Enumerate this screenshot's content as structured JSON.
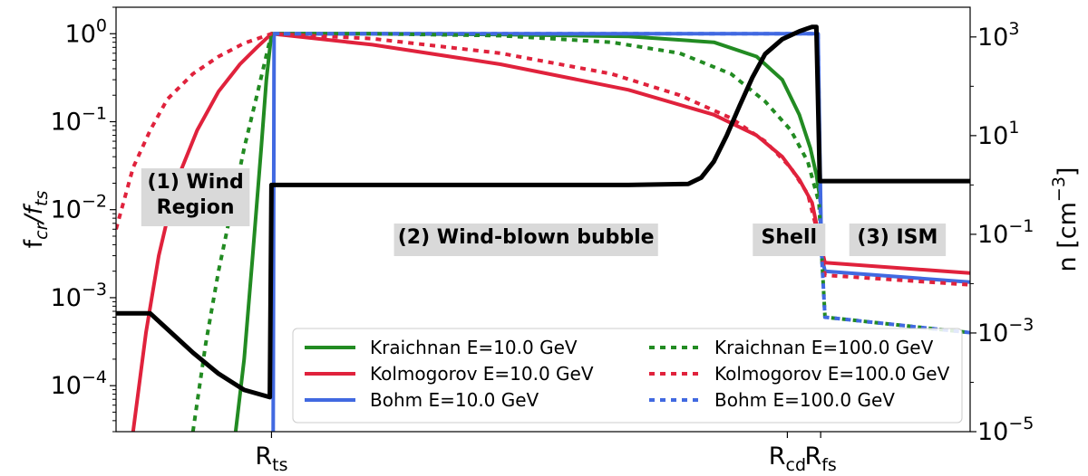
{
  "chart_data": {
    "type": "line",
    "ylabel_left": "f_cr/f_ts",
    "ylabel_right": "n [cm^-3]",
    "xlim": [
      0,
      100
    ],
    "ylim_left": [
      3e-05,
      2
    ],
    "ylim_right": [
      1e-05,
      4000
    ],
    "y_scale": "log",
    "x_ticks": [
      {
        "x": 18.2,
        "label": "R",
        "sub": "ts"
      },
      {
        "x": 78.6,
        "label": "R",
        "sub": "cd"
      },
      {
        "x": 82.5,
        "label": "R",
        "sub": "fs"
      }
    ],
    "y_ticks_left": [
      {
        "v": 1,
        "base": "10",
        "exp": "0"
      },
      {
        "v": 0.1,
        "base": "10",
        "exp": "−1"
      },
      {
        "v": 0.01,
        "base": "10",
        "exp": "−2"
      },
      {
        "v": 0.001,
        "base": "10",
        "exp": "−3"
      },
      {
        "v": 0.0001,
        "base": "10",
        "exp": "−4"
      }
    ],
    "y_ticks_right": [
      {
        "v": 1000,
        "base": "10",
        "exp": "3"
      },
      {
        "v": 10,
        "base": "10",
        "exp": "1"
      },
      {
        "v": 0.1,
        "base": "10",
        "exp": "−1"
      },
      {
        "v": 0.001,
        "base": "10",
        "exp": "−3"
      },
      {
        "v": 1e-05,
        "base": "10",
        "exp": "−5"
      }
    ],
    "regions": [
      {
        "lines": [
          "(1) Wind",
          "Region"
        ],
        "x": 9.3
      },
      {
        "lines": [
          "(2) Wind-blown bubble"
        ],
        "x": 48.0
      },
      {
        "lines": [
          "Shell"
        ],
        "x": 78.8
      },
      {
        "lines": [
          "(3) ISM"
        ],
        "x": 91.5
      }
    ],
    "series": [
      {
        "name": "Kraichnan E=10.0 GeV",
        "color": "#228b22",
        "style": "solid",
        "axis": "left",
        "points": [
          [
            14.0,
            3e-05
          ],
          [
            15.0,
            0.0002
          ],
          [
            16.0,
            0.003
          ],
          [
            17.0,
            0.05
          ],
          [
            17.6,
            0.3
          ],
          [
            18.2,
            1
          ],
          [
            30,
            1
          ],
          [
            45,
            0.98
          ],
          [
            60,
            0.93
          ],
          [
            70,
            0.8
          ],
          [
            75,
            0.55
          ],
          [
            78,
            0.3
          ],
          [
            80,
            0.12
          ],
          [
            81.3,
            0.05
          ],
          [
            82.0,
            0.025
          ],
          [
            82.5,
            0.012
          ]
        ]
      },
      {
        "name": "Kolmogorov E=10.0 GeV",
        "color": "#e0223c",
        "style": "solid",
        "axis": "left",
        "points": [
          [
            2.0,
            3e-05
          ],
          [
            3.5,
            0.0004
          ],
          [
            5.0,
            0.003
          ],
          [
            7.0,
            0.02
          ],
          [
            9.5,
            0.08
          ],
          [
            12.0,
            0.22
          ],
          [
            14.5,
            0.45
          ],
          [
            16.5,
            0.7
          ],
          [
            18.2,
            1
          ],
          [
            30,
            0.75
          ],
          [
            45,
            0.45
          ],
          [
            60,
            0.23
          ],
          [
            70,
            0.12
          ],
          [
            75,
            0.07
          ],
          [
            78,
            0.04
          ],
          [
            80,
            0.022
          ],
          [
            81.5,
            0.012
          ],
          [
            82.5,
            0.004
          ],
          [
            83,
            0.0025
          ],
          [
            100,
            0.0019
          ]
        ]
      },
      {
        "name": "Bohm E=10.0 GeV",
        "color": "#4169e1",
        "style": "solid",
        "axis": "left",
        "points": [
          [
            18.4,
            3e-05
          ],
          [
            18.5,
            1
          ],
          [
            82.2,
            1
          ],
          [
            82.4,
            0.05
          ],
          [
            82.6,
            0.003
          ],
          [
            83,
            0.002
          ],
          [
            100,
            0.0015
          ]
        ]
      },
      {
        "name": "Kraichnan E=100.0 GeV",
        "color": "#228b22",
        "style": "dotted",
        "axis": "left",
        "points": [
          [
            9.0,
            3e-05
          ],
          [
            10.5,
            0.0003
          ],
          [
            12.0,
            0.002
          ],
          [
            13.5,
            0.01
          ],
          [
            15.0,
            0.05
          ],
          [
            16.5,
            0.2
          ],
          [
            18.2,
            1
          ],
          [
            30,
            1
          ],
          [
            45,
            0.95
          ],
          [
            58,
            0.8
          ],
          [
            66,
            0.6
          ],
          [
            72,
            0.35
          ],
          [
            76,
            0.17
          ],
          [
            79,
            0.08
          ],
          [
            81,
            0.035
          ],
          [
            82.3,
            0.012
          ],
          [
            83,
            0.0006
          ],
          [
            100,
            0.0004
          ]
        ]
      },
      {
        "name": "Kolmogorov E=100.0 GeV",
        "color": "#e0223c",
        "style": "dotted",
        "axis": "left",
        "points": [
          [
            0,
            0.006
          ],
          [
            2,
            0.03
          ],
          [
            4,
            0.08
          ],
          [
            6,
            0.18
          ],
          [
            9,
            0.35
          ],
          [
            12,
            0.55
          ],
          [
            15,
            0.78
          ],
          [
            18.2,
            1
          ],
          [
            30,
            0.88
          ],
          [
            45,
            0.6
          ],
          [
            58,
            0.35
          ],
          [
            66,
            0.2
          ],
          [
            72,
            0.11
          ],
          [
            76,
            0.06
          ],
          [
            79,
            0.03
          ],
          [
            81,
            0.015
          ],
          [
            82.5,
            0.004
          ],
          [
            83,
            0.0018
          ],
          [
            100,
            0.0014
          ]
        ]
      },
      {
        "name": "Bohm E=100.0 GeV",
        "color": "#4169e1",
        "style": "dotted",
        "axis": "left",
        "points": [
          [
            18.5,
            1
          ],
          [
            82.2,
            1
          ],
          [
            82.5,
            0.005
          ],
          [
            83,
            0.0006
          ],
          [
            100,
            0.0004
          ]
        ]
      },
      {
        "name": "",
        "color": "#000000",
        "style": "solid",
        "axis": "right",
        "width": 5,
        "points": [
          [
            0,
            0.0025
          ],
          [
            4,
            0.0025
          ],
          [
            6,
            0.0012
          ],
          [
            9,
            0.0004
          ],
          [
            12,
            0.00015
          ],
          [
            15,
            7e-05
          ],
          [
            18.0,
            5e-05
          ],
          [
            18.2,
            1.0
          ],
          [
            60,
            1.0
          ],
          [
            67,
            1.05
          ],
          [
            68.5,
            1.4
          ],
          [
            70,
            3
          ],
          [
            71.5,
            10
          ],
          [
            73,
            40
          ],
          [
            74.5,
            150
          ],
          [
            76,
            450
          ],
          [
            78,
            900
          ],
          [
            80,
            1300
          ],
          [
            81.5,
            1600
          ],
          [
            82.0,
            1600
          ],
          [
            82.4,
            1.2
          ],
          [
            83,
            1.2
          ],
          [
            100,
            1.2
          ]
        ]
      }
    ],
    "legend": {
      "placement": "lower-right",
      "columns": 2,
      "items": [
        {
          "label": "Kraichnan E=10.0 GeV",
          "color": "#228b22",
          "style": "solid"
        },
        {
          "label": "Kraichnan E=100.0 GeV",
          "color": "#228b22",
          "style": "dotted"
        },
        {
          "label": "Kolmogorov E=10.0 GeV",
          "color": "#e0223c",
          "style": "solid"
        },
        {
          "label": "Kolmogorov E=100.0 GeV",
          "color": "#e0223c",
          "style": "dotted"
        },
        {
          "label": "Bohm E=10.0 GeV",
          "color": "#4169e1",
          "style": "solid"
        },
        {
          "label": "Bohm E=100.0 GeV",
          "color": "#4169e1",
          "style": "dotted"
        }
      ]
    }
  }
}
